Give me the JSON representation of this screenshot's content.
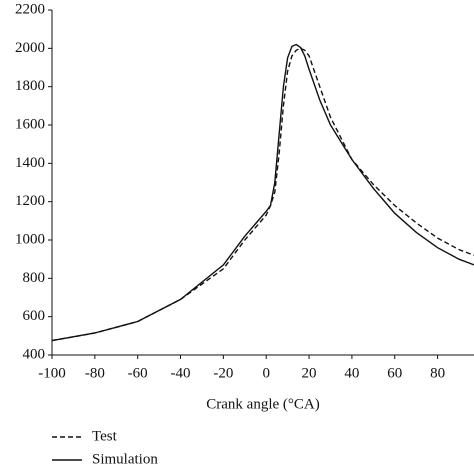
{
  "chart_data": {
    "type": "line",
    "x_label": "Crank angle (°CA)",
    "x": [
      -100,
      -80,
      -60,
      -40,
      -20,
      -10,
      0,
      2,
      4,
      6,
      8,
      10,
      12,
      14,
      16,
      18,
      20,
      25,
      30,
      40,
      50,
      60,
      70,
      80,
      90,
      97
    ],
    "series": [
      {
        "name": "Test",
        "color": "#111111",
        "dash": "dashed",
        "values": [
          475,
          515,
          575,
          690,
          850,
          1000,
          1130,
          1180,
          1250,
          1450,
          1700,
          1880,
          1960,
          1990,
          2000,
          1990,
          1960,
          1800,
          1640,
          1420,
          1290,
          1180,
          1090,
          1010,
          950,
          920
        ]
      },
      {
        "name": "Simulation",
        "color": "#111111",
        "dash": "solid",
        "values": [
          475,
          515,
          575,
          690,
          870,
          1020,
          1150,
          1180,
          1300,
          1550,
          1800,
          1950,
          2010,
          2020,
          2005,
          1960,
          1890,
          1730,
          1600,
          1420,
          1270,
          1140,
          1040,
          960,
          900,
          870
        ]
      }
    ],
    "xlim": [
      -100,
      97
    ],
    "xticks": [
      -100,
      -80,
      -60,
      -40,
      -20,
      0,
      20,
      40,
      60,
      80
    ],
    "ylim": [
      400,
      2200
    ],
    "yticks": [
      400,
      600,
      800,
      1000,
      1200,
      1400,
      1600,
      1800,
      2000,
      2200
    ],
    "legend": "bottom-left"
  }
}
